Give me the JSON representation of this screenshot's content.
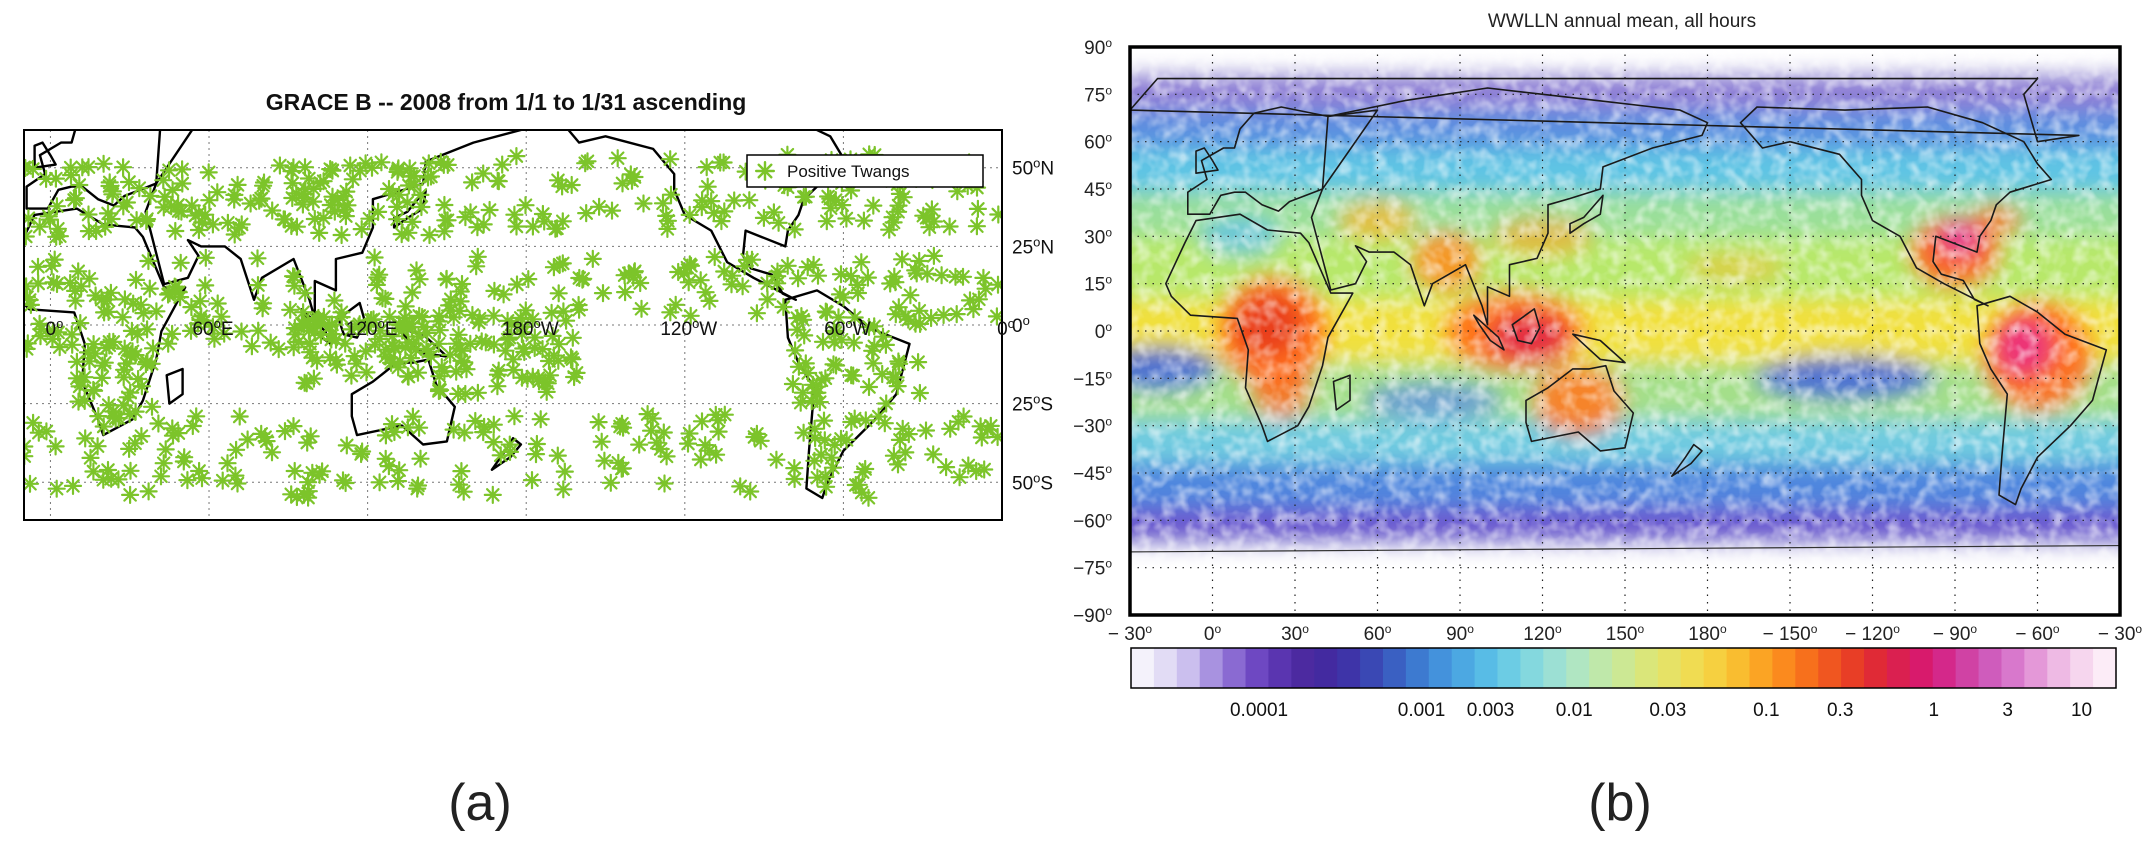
{
  "panel_a": {
    "title": "GRACE B -- 2008 from 1/1 to 1/31 ascending",
    "legend": "Positive Twangs",
    "marker_color": "#7cc42a",
    "x_ticks": [
      {
        "lon": 0,
        "num": "0",
        "sup": "o",
        "dir": ""
      },
      {
        "lon": 60,
        "num": "60",
        "sup": "o",
        "dir": "E"
      },
      {
        "lon": 120,
        "num": "120",
        "sup": "o",
        "dir": "E"
      },
      {
        "lon": 180,
        "num": "180",
        "sup": "o",
        "dir": "W"
      },
      {
        "lon": 240,
        "num": "120",
        "sup": "o",
        "dir": "W"
      },
      {
        "lon": 300,
        "num": "60",
        "sup": "o",
        "dir": "W"
      },
      {
        "lon": 360,
        "num": "0",
        "sup": "o",
        "dir": ""
      }
    ],
    "y_ticks": [
      {
        "lat": 50,
        "num": "50",
        "sup": "o",
        "dir": "N"
      },
      {
        "lat": 25,
        "num": "25",
        "sup": "o",
        "dir": "N"
      },
      {
        "lat": 0,
        "num": "0",
        "sup": "o",
        "dir": ""
      },
      {
        "lat": -25,
        "num": "25",
        "sup": "o",
        "dir": "S"
      },
      {
        "lat": -50,
        "num": "50",
        "sup": "o",
        "dir": "S"
      }
    ],
    "lon_range": [
      -10,
      360
    ],
    "lat_range": [
      -62,
      62
    ]
  },
  "panel_b": {
    "title": "WWLLN annual mean, all hours",
    "y_ticks": [
      "90",
      "75",
      "60",
      "45",
      "30",
      "15",
      "0",
      "-15",
      "-30",
      "-45",
      "-60",
      "-75",
      "-90"
    ],
    "x_ticks": [
      "-30",
      "0",
      "30",
      "60",
      "90",
      "120",
      "150",
      "180",
      "-150",
      "-120",
      "-90",
      "-60",
      "-30"
    ],
    "degree_mark": "o",
    "colorbar_labels": [
      "0.0001",
      "0.001",
      "0.003",
      "0.01",
      "0.03",
      "0.1",
      "0.3",
      "1",
      "3",
      "10"
    ],
    "colorbar_positions": [
      0.13,
      0.295,
      0.365,
      0.45,
      0.545,
      0.645,
      0.72,
      0.815,
      0.89,
      0.965
    ]
  },
  "captions": {
    "a": "(a)",
    "b": "(b)"
  }
}
